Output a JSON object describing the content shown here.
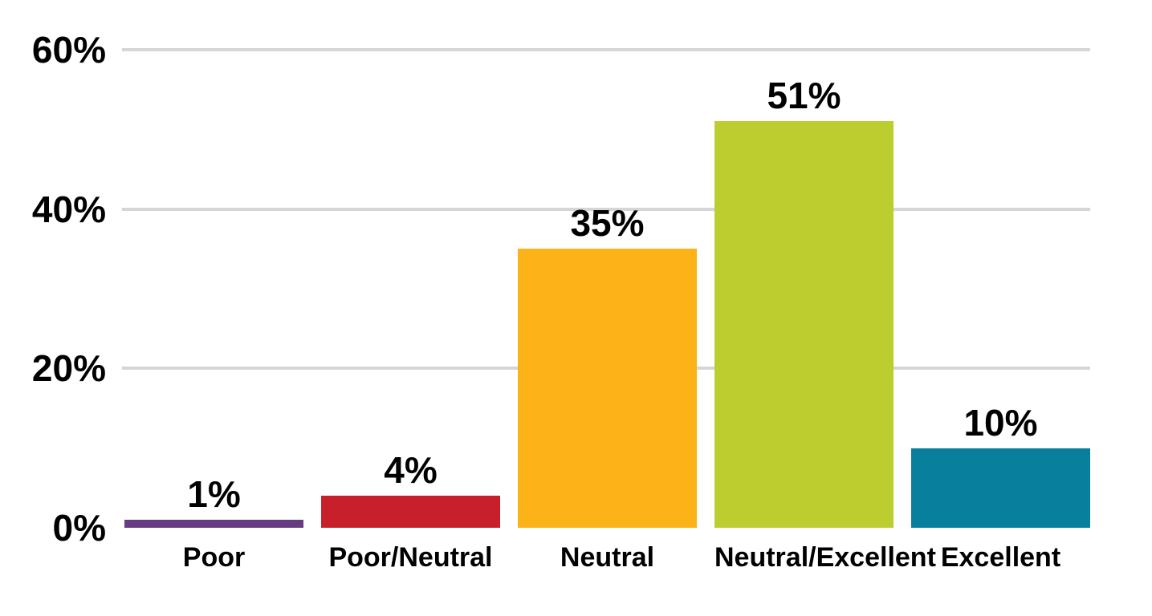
{
  "chart_data": {
    "type": "bar",
    "title": "",
    "xlabel": "",
    "ylabel": "",
    "categories": [
      "Poor",
      "Poor/Neutral",
      "Neutral",
      "Neutral/Excellent",
      "Excellent"
    ],
    "values": [
      1,
      4,
      35,
      51,
      10
    ],
    "value_labels": [
      "1%",
      "4%",
      "35%",
      "51%",
      "10%"
    ],
    "bar_colors": [
      "#663C82",
      "#C7202A",
      "#FBB317",
      "#BCCD30",
      "#077F9D"
    ],
    "ylim": [
      0,
      60
    ],
    "yticks": [
      0,
      20,
      40,
      60
    ],
    "ytick_labels": [
      "0%",
      "20%",
      "40%",
      "60%"
    ],
    "grid": true,
    "gridline_color": "#D6D6D6",
    "background_color": "#FFFFFF",
    "text_color": "#000000",
    "legend_position": "none"
  }
}
